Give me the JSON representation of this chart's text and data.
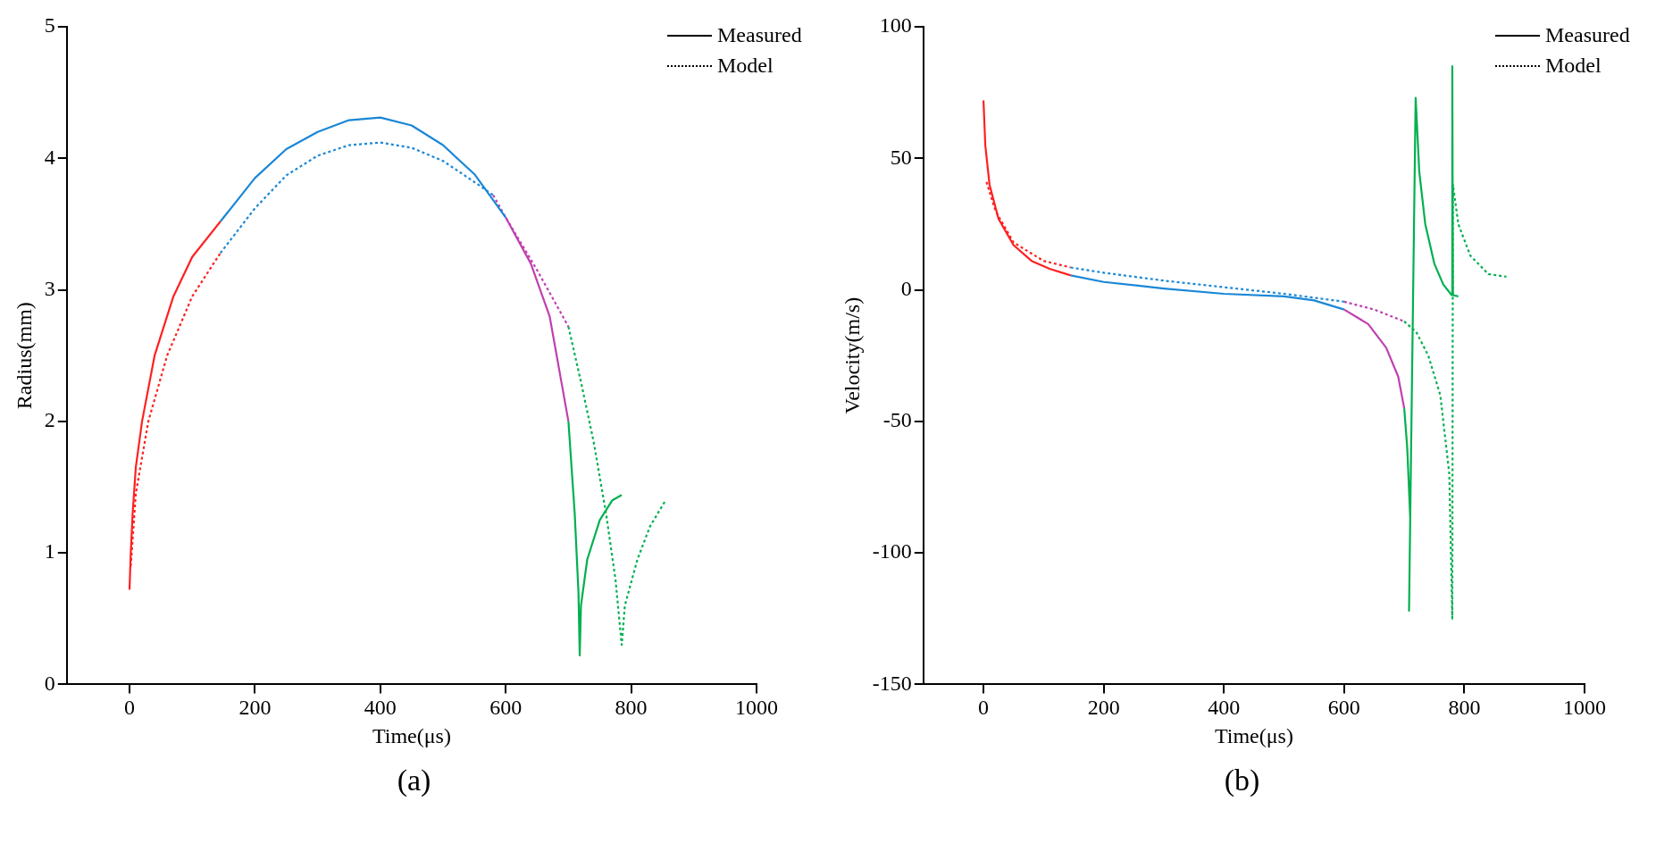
{
  "chart_data": [
    {
      "type": "line",
      "xlabel": "Time(μs)",
      "ylabel": "Radius(mm)",
      "annotations": [
        "Measured",
        "Model",
        "(a)"
      ],
      "xlim": [
        -100,
        1000
      ],
      "xticks": [
        0,
        200,
        400,
        600,
        800,
        1000
      ],
      "ylim": [
        0,
        5
      ],
      "yticks": [
        0,
        1,
        2,
        3,
        4,
        5
      ],
      "series": [
        {
          "color": "#ff2020",
          "line_style": "solid",
          "x": [
            0,
            2,
            5,
            10,
            20,
            40,
            70,
            100,
            145
          ],
          "values": [
            0.72,
            1.0,
            1.3,
            1.65,
            2.0,
            2.5,
            2.95,
            3.25,
            3.52
          ]
        },
        {
          "color": "#1a87d6",
          "line_style": "solid",
          "x": [
            145,
            200,
            250,
            300,
            350,
            400,
            450,
            500,
            550,
            600
          ],
          "values": [
            3.52,
            3.85,
            4.07,
            4.2,
            4.29,
            4.31,
            4.25,
            4.1,
            3.88,
            3.55
          ]
        },
        {
          "color": "#c040b0",
          "line_style": "solid",
          "x": [
            600,
            640,
            670,
            700
          ],
          "values": [
            3.55,
            3.2,
            2.8,
            2.0
          ]
        },
        {
          "color": "#00b050",
          "line_style": "solid",
          "x": [
            700,
            710,
            716,
            718,
            720,
            730,
            750,
            770,
            785
          ],
          "values": [
            2.0,
            1.3,
            0.7,
            0.22,
            0.6,
            0.95,
            1.25,
            1.4,
            1.44
          ]
        },
        {
          "color": "#ff2020",
          "line_style": "dotted",
          "x": [
            2,
            10,
            30,
            60,
            100,
            145
          ],
          "values": [
            0.9,
            1.45,
            2.0,
            2.5,
            2.95,
            3.28
          ]
        },
        {
          "color": "#1a87d6",
          "line_style": "dotted",
          "x": [
            145,
            200,
            250,
            300,
            350,
            400,
            450,
            500,
            550,
            580
          ],
          "values": [
            3.28,
            3.62,
            3.87,
            4.02,
            4.1,
            4.12,
            4.08,
            3.98,
            3.82,
            3.72
          ]
        },
        {
          "color": "#c040b0",
          "line_style": "dotted",
          "x": [
            580,
            600,
            650,
            700
          ],
          "values": [
            3.72,
            3.55,
            3.15,
            2.72
          ]
        },
        {
          "color": "#00b050",
          "line_style": "dotted",
          "x": [
            700,
            720,
            740,
            760,
            775,
            785,
            790,
            810,
            830,
            855
          ],
          "values": [
            2.72,
            2.3,
            1.85,
            1.3,
            0.8,
            0.3,
            0.6,
            0.95,
            1.2,
            1.4
          ]
        }
      ]
    },
    {
      "type": "line",
      "xlabel": "Time(μs)",
      "ylabel": "Velocity(m/s)",
      "annotations": [
        "Measured",
        "Model",
        "(b)"
      ],
      "xlim": [
        -100,
        1000
      ],
      "xticks": [
        0,
        200,
        400,
        600,
        800,
        1000
      ],
      "ylim": [
        -150,
        100
      ],
      "yticks": [
        -150,
        -100,
        -50,
        0,
        50,
        100
      ],
      "series": [
        {
          "color": "#ff2020",
          "line_style": "solid",
          "x": [
            0,
            3,
            10,
            25,
            50,
            80,
            110,
            145
          ],
          "values": [
            72,
            55,
            40,
            27,
            17,
            11,
            8,
            5.5
          ]
        },
        {
          "color": "#1a87d6",
          "line_style": "solid",
          "x": [
            145,
            200,
            300,
            400,
            500,
            550,
            600
          ],
          "values": [
            5.5,
            3,
            0.5,
            -1.5,
            -2.5,
            -4,
            -7.5
          ]
        },
        {
          "color": "#c040b0",
          "line_style": "solid",
          "x": [
            600,
            640,
            670,
            690,
            700
          ],
          "values": [
            -7.5,
            -13,
            -22,
            -33,
            -45
          ]
        },
        {
          "color": "#00b050",
          "line_style": "solid",
          "x": [
            700,
            705,
            710,
            708,
            719,
            725,
            735,
            750,
            765,
            779,
            780,
            781,
            790
          ],
          "values": [
            -45,
            -60,
            -87,
            -122,
            73,
            45,
            25,
            10,
            2,
            -2,
            85,
            -2,
            -2.5
          ]
        },
        {
          "color": "#ff2020",
          "line_style": "dotted",
          "x": [
            5,
            20,
            50,
            100,
            145
          ],
          "values": [
            41,
            30,
            18,
            11,
            8.5
          ]
        },
        {
          "color": "#1a87d6",
          "line_style": "dotted",
          "x": [
            145,
            200,
            300,
            400,
            500,
            600
          ],
          "values": [
            8.5,
            6.5,
            3.5,
            1,
            -1.5,
            -4.5
          ]
        },
        {
          "color": "#c040b0",
          "line_style": "dotted",
          "x": [
            600,
            650,
            700
          ],
          "values": [
            -4.5,
            -7.5,
            -12
          ]
        },
        {
          "color": "#00b050",
          "line_style": "dotted",
          "x": [
            700,
            720,
            740,
            760,
            775,
            780,
            781,
            790,
            810,
            840,
            870
          ],
          "values": [
            -12,
            -16,
            -25,
            -40,
            -70,
            -125,
            40,
            25,
            13,
            6,
            5
          ]
        }
      ]
    }
  ]
}
